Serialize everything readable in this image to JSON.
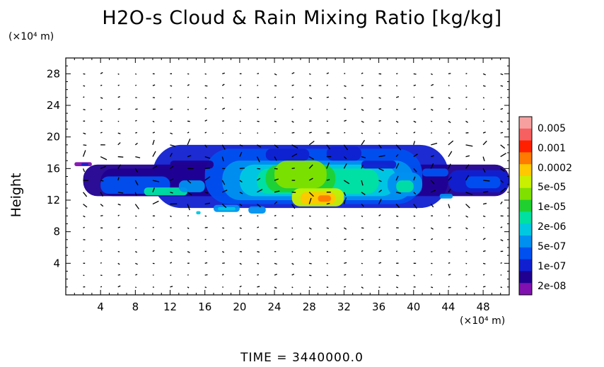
{
  "chart_data": {
    "type": "heatmap",
    "title": "H2O-s Cloud & Rain Mixing Ratio [kg/kg]",
    "ylabel": "Height",
    "xunit": "(×10⁴ m)",
    "yunit": "(×10⁴ m)",
    "xlim": [
      0,
      51
    ],
    "ylim": [
      0,
      30
    ],
    "xticks": [
      4,
      8,
      12,
      16,
      20,
      24,
      28,
      32,
      36,
      40,
      44,
      48
    ],
    "yticks": [
      4,
      8,
      12,
      16,
      20,
      24,
      28
    ],
    "colorbar": {
      "labels": [
        "0.005",
        "0.001",
        "0.0002",
        "5e-05",
        "1e-05",
        "2e-06",
        "5e-07",
        "1e-07",
        "2e-08"
      ],
      "colors": [
        "#f7a0a0",
        "#f66060",
        "#ff2000",
        "#ff7a00",
        "#ffc800",
        "#c8f000",
        "#80e000",
        "#20d030",
        "#00e0a0",
        "#00c8e0",
        "#0090f0",
        "#0050f0",
        "#1020d0",
        "#200090",
        "#8010b0"
      ]
    },
    "annotations": [
      "TIME = 3440000.0"
    ],
    "grid": false,
    "note_cloud_layer": "cloud band between heights ~10 and ~19, x from ~1 to ~51"
  },
  "time_label": "TIME = 3440000.0"
}
